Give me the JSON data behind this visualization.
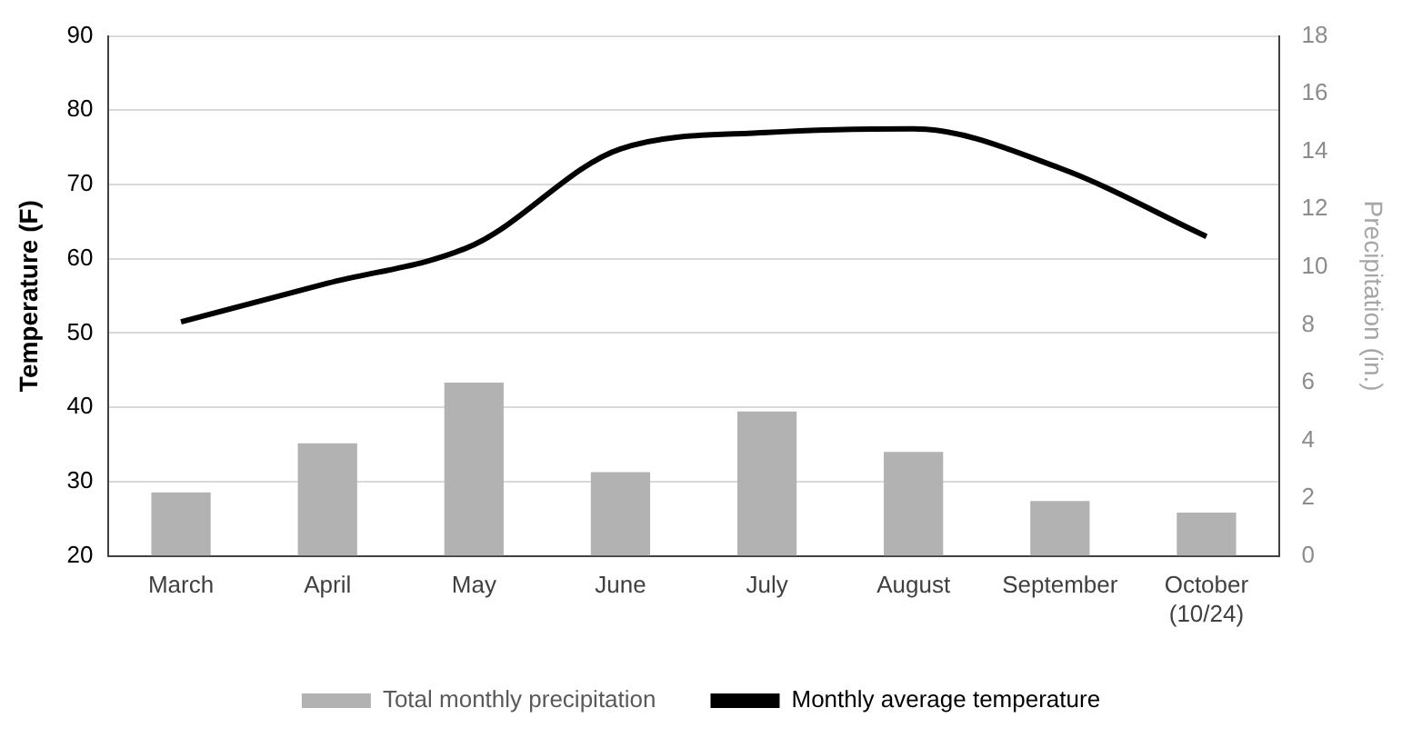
{
  "chart_data": {
    "type": "bar",
    "categories": [
      "March",
      "April",
      "May",
      "June",
      "July",
      "August",
      "September",
      "October\n(10/24)"
    ],
    "series": [
      {
        "name": "Total monthly precipitation",
        "axis": "y2",
        "color": "#b2b2b2",
        "values": [
          2.2,
          3.9,
          6.0,
          2.9,
          5.0,
          3.6,
          1.9,
          1.5
        ]
      },
      {
        "name": "Monthly average temperature",
        "type": "line",
        "color": "#000000",
        "values": [
          51.5,
          56.7,
          61.9,
          74.8,
          77.0,
          77.5,
          72.2,
          63.0
        ]
      }
    ],
    "ylabel": "Temperature (F)",
    "y2label": "Precipitation (in.)",
    "ylim": [
      20,
      90
    ],
    "yticks": [
      20,
      30,
      40,
      50,
      60,
      70,
      80,
      90
    ],
    "y2lim": [
      0,
      18
    ],
    "y2ticks": [
      0,
      2,
      4,
      6,
      8,
      10,
      12,
      14,
      16,
      18
    ],
    "grid": "y",
    "legend": "bottom",
    "marker": "none"
  }
}
